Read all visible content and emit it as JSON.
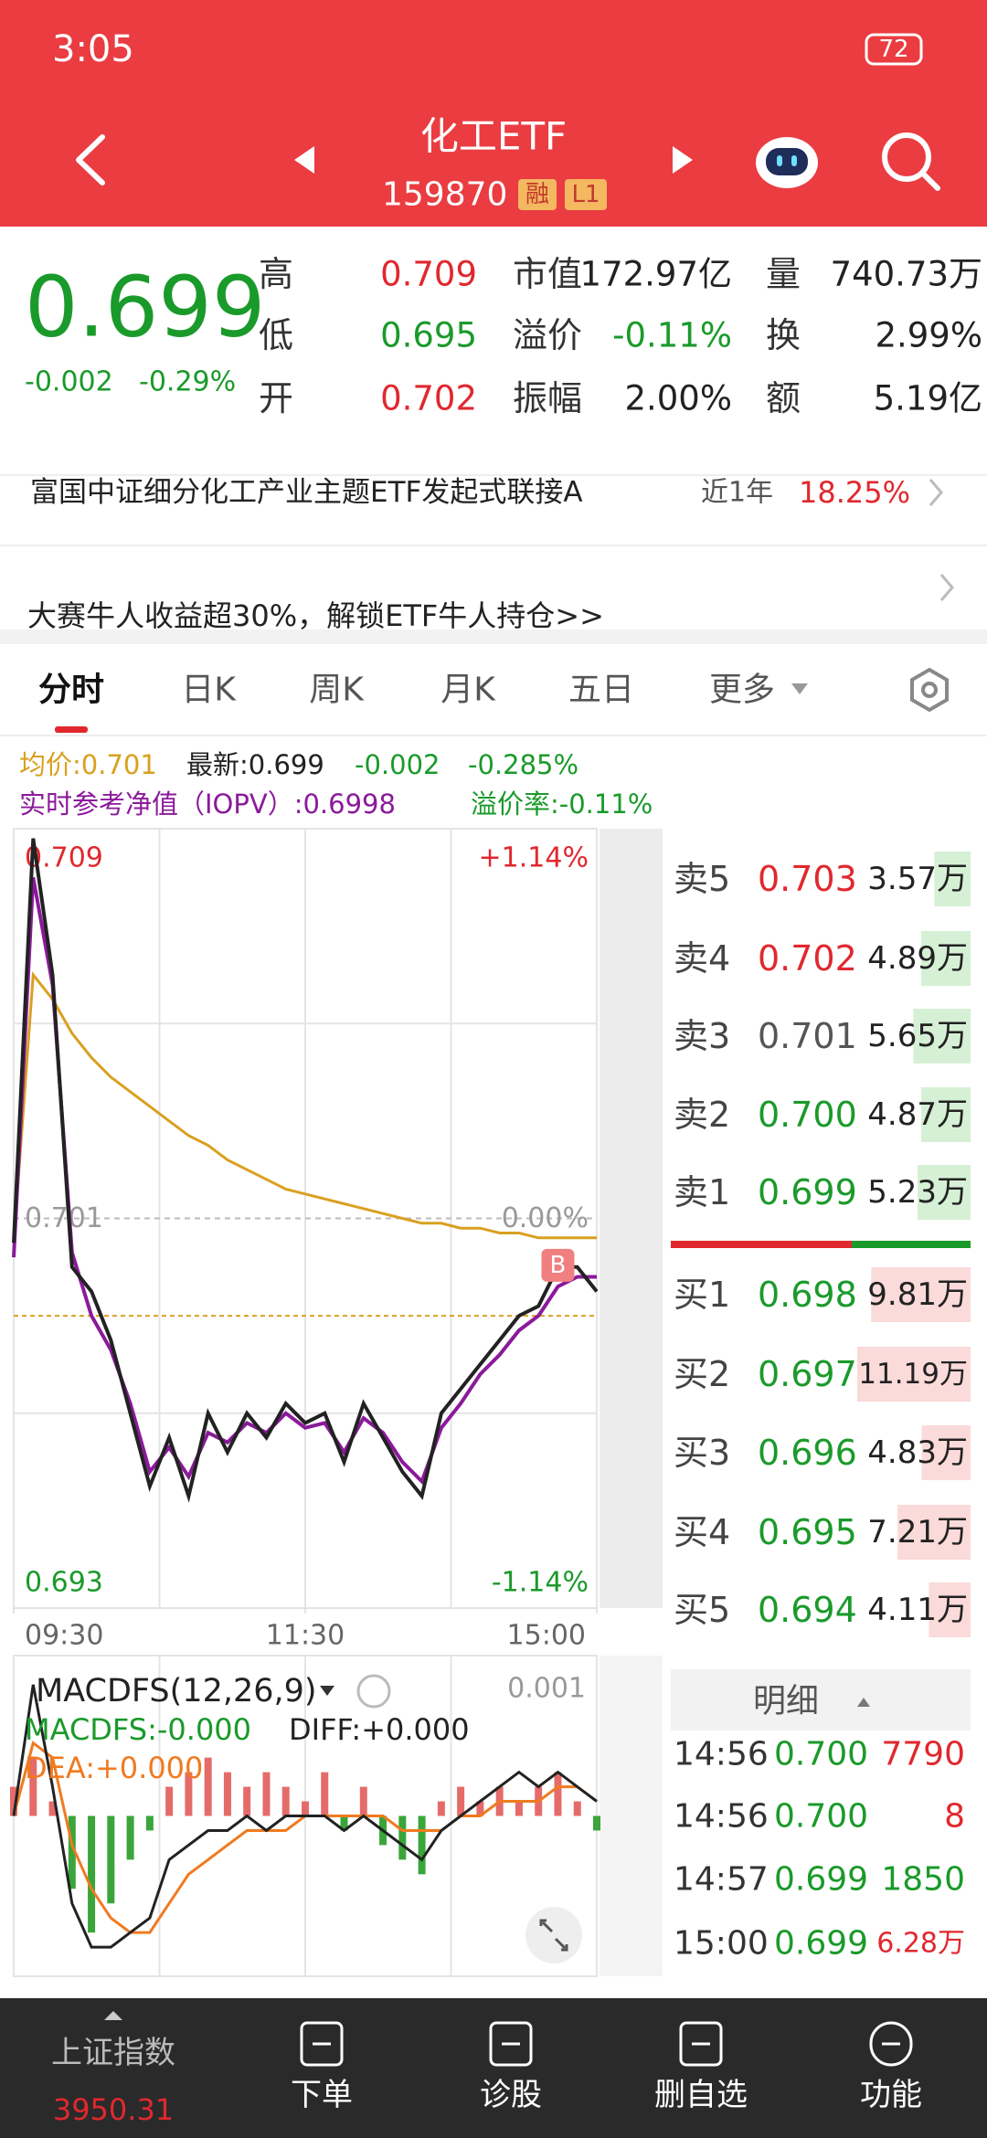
{
  "status_bar": {
    "time": "3:05",
    "battery": "72"
  },
  "header": {
    "title": "化工ETF",
    "code": "159870",
    "badges": [
      "融",
      "L1"
    ]
  },
  "quote": {
    "price": "0.699",
    "change": "-0.002",
    "change_pct": "-0.29%",
    "rows": [
      [
        {
          "label": "高",
          "value": "0.709",
          "color": "#e0282e"
        },
        {
          "label": "市值",
          "value": "172.97亿",
          "color": "#222222"
        },
        {
          "label": "量",
          "value": "740.73万",
          "color": "#222222"
        }
      ],
      [
        {
          "label": "低",
          "value": "0.695",
          "color": "#1a9a2a"
        },
        {
          "label": "溢价",
          "value": "-0.11%",
          "color": "#1a9a2a"
        },
        {
          "label": "换",
          "value": "2.99%",
          "color": "#222222"
        }
      ],
      [
        {
          "label": "开",
          "value": "0.702",
          "color": "#e0282e"
        },
        {
          "label": "振幅",
          "value": "2.00%",
          "color": "#222222"
        },
        {
          "label": "额",
          "value": "5.19亿",
          "color": "#222222"
        }
      ]
    ]
  },
  "fund": {
    "name": "富国中证细分化工产业主题ETF发起式联接A",
    "period": "近1年",
    "return": "18.25%"
  },
  "banner": "大赛牛人收益超30%，解锁ETF牛人持仓>>",
  "tabs": [
    "分时",
    "日K",
    "周K",
    "月K",
    "五日",
    "更多"
  ],
  "info": {
    "avg": "均价:0.701",
    "latest": "最新:0.699",
    "change": "-0.002",
    "change_pct": "-0.285%",
    "iopv": "实时参考净值（IOPV）:0.6998",
    "premium": "溢价率:-0.11%"
  },
  "intraday": {
    "type": "line",
    "x": [
      0,
      8,
      16,
      24,
      32,
      40,
      48,
      56,
      64,
      72,
      80,
      88,
      96,
      104,
      112,
      120,
      128,
      136,
      144,
      152,
      160,
      168,
      176,
      184,
      192,
      200,
      208,
      216,
      224,
      232,
      240
    ],
    "xlim": [
      0,
      240
    ],
    "xticks": [
      {
        "value": 0,
        "label": "09:30"
      },
      {
        "value": 120,
        "label": "11:30"
      },
      {
        "value": 240,
        "label": "15:00"
      }
    ],
    "xgrid": [
      60,
      120,
      180
    ],
    "ylim": [
      0.693,
      0.709
    ],
    "yticks": [
      0.709,
      0.701,
      0.693
    ],
    "ygrid": [
      0.705,
      0.697
    ],
    "right_labels": [
      "+1.14%",
      "0.00%",
      "-1.14%"
    ],
    "last_price_line": 0.699,
    "series": [
      {
        "color": "#222222",
        "values": [
          0.7005,
          0.7088,
          0.706,
          0.7,
          0.6995,
          0.6985,
          0.697,
          0.6955,
          0.6965,
          0.6953,
          0.697,
          0.6962,
          0.697,
          0.6965,
          0.6972,
          0.6968,
          0.697,
          0.696,
          0.6972,
          0.6965,
          0.6958,
          0.6953,
          0.697,
          0.6975,
          0.698,
          0.6985,
          0.699,
          0.6992,
          0.7,
          0.7,
          0.6995
        ]
      },
      {
        "color": "#8b1a9b",
        "values": [
          0.7002,
          0.708,
          0.7058,
          0.7003,
          0.699,
          0.6983,
          0.6972,
          0.6958,
          0.6963,
          0.6957,
          0.6966,
          0.6964,
          0.6968,
          0.6966,
          0.697,
          0.6967,
          0.6968,
          0.6962,
          0.6969,
          0.6966,
          0.696,
          0.6956,
          0.6967,
          0.6972,
          0.6978,
          0.6982,
          0.6987,
          0.699,
          0.6996,
          0.6998,
          0.6998
        ]
      },
      {
        "color": "#d9a020",
        "values": [
          0.7005,
          0.706,
          0.7055,
          0.7048,
          0.7043,
          0.7039,
          0.7036,
          0.7033,
          0.703,
          0.7027,
          0.7025,
          0.7022,
          0.702,
          0.7018,
          0.7016,
          0.7015,
          0.7014,
          0.7013,
          0.7012,
          0.7011,
          0.701,
          0.7009,
          0.7009,
          0.7008,
          0.7008,
          0.7007,
          0.7007,
          0.7006,
          0.7006,
          0.7006,
          0.7006
        ]
      }
    ],
    "marker": {
      "label": "B",
      "x": 224,
      "value": 0.7
    }
  },
  "macd": {
    "type": "bar",
    "title": "MACDFS(12,26,9)",
    "ylim": [
      -0.0011,
      0.0011
    ],
    "yticks": [
      0.001
    ],
    "labels": {
      "macd": "MACDFS:-0.000",
      "diff": "DIFF:+0.000",
      "dea": "DEA:+0.000"
    },
    "hist": [
      0.0002,
      0.0004,
      0.0001,
      -0.0005,
      -0.0008,
      -0.0006,
      -0.0003,
      -0.0001,
      0.0002,
      0.0003,
      0.0004,
      0.0003,
      0.0002,
      0.0003,
      0.0002,
      0.0001,
      0.0003,
      -0.0001,
      0.0002,
      -0.0002,
      -0.0003,
      -0.0004,
      0.0001,
      0.0002,
      0.0001,
      0.0002,
      0.0001,
      0.0002,
      0.0003,
      0.0001,
      -0.0001
    ],
    "diff": {
      "color": "#222222",
      "values": [
        0,
        0.0009,
        0.0002,
        -0.0006,
        -0.0009,
        -0.0009,
        -0.0008,
        -0.0007,
        -0.0003,
        -0.0002,
        -0.0001,
        -0.0001,
        0,
        -0.0001,
        0,
        0,
        0,
        -0.0001,
        0,
        -0.0001,
        -0.0002,
        -0.0003,
        -0.0001,
        0,
        0.0001,
        0.0002,
        0.0003,
        0.0002,
        0.0003,
        0.0002,
        0.0001
      ]
    },
    "dea": {
      "color": "#f07a20",
      "values": [
        0,
        0.0005,
        0.0004,
        -0.0002,
        -0.0005,
        -0.0007,
        -0.0008,
        -0.0008,
        -0.0006,
        -0.0004,
        -0.0003,
        -0.0002,
        -0.0001,
        -0.0001,
        -0.0001,
        0,
        0,
        0,
        0,
        0,
        -0.0001,
        -0.0001,
        -0.0001,
        0,
        0,
        0.0001,
        0.0001,
        0.0001,
        0.0002,
        0.0002,
        0.0001
      ]
    }
  },
  "order_book": {
    "sell": [
      {
        "label": "卖5",
        "price": "0.703",
        "color": "#e0282e",
        "volume": {
          "value": 3.57,
          "label": "3.57万"
        }
      },
      {
        "label": "卖4",
        "price": "0.702",
        "color": "#e0282e",
        "volume": {
          "value": 4.89,
          "label": "4.89万"
        }
      },
      {
        "label": "卖3",
        "price": "0.701",
        "color": "#555555",
        "volume": {
          "value": 5.65,
          "label": "5.65万"
        }
      },
      {
        "label": "卖2",
        "price": "0.700",
        "color": "#1a9a2a",
        "volume": {
          "value": 4.87,
          "label": "4.87万"
        }
      },
      {
        "label": "卖1",
        "price": "0.699",
        "color": "#1a9a2a",
        "volume": {
          "value": 5.23,
          "label": "5.23万"
        }
      }
    ],
    "buy": [
      {
        "label": "买1",
        "price": "0.698",
        "color": "#1a9a2a",
        "volume": {
          "value": 9.81,
          "label": "9.81万"
        }
      },
      {
        "label": "买2",
        "price": "0.697",
        "color": "#1a9a2a",
        "volume": {
          "value": 11.19,
          "label": "11.19万"
        }
      },
      {
        "label": "买3",
        "price": "0.696",
        "color": "#1a9a2a",
        "volume": {
          "value": 4.83,
          "label": "4.83万"
        }
      },
      {
        "label": "买4",
        "price": "0.695",
        "color": "#1a9a2a",
        "volume": {
          "value": 7.21,
          "label": "7.21万"
        }
      },
      {
        "label": "买5",
        "price": "0.694",
        "color": "#1a9a2a",
        "volume": {
          "value": 4.11,
          "label": "4.11万"
        }
      }
    ]
  },
  "trades": {
    "title": "明细",
    "rows": [
      {
        "time": "14:56",
        "price": "0.700",
        "volume": "7790",
        "color": "#e0282e"
      },
      {
        "time": "14:56",
        "price": "0.700",
        "volume": "8",
        "color": "#e0282e"
      },
      {
        "time": "14:57",
        "price": "0.699",
        "volume": "1850",
        "color": "#1a9a2a"
      },
      {
        "time": "15:00",
        "price": "0.699",
        "volume": "6.28万",
        "color": "#e0282e"
      }
    ]
  },
  "bottom_nav": [
    {
      "label": "上证指数",
      "value": "3950.31"
    },
    {
      "label": "下单"
    },
    {
      "label": "诊股"
    },
    {
      "label": "删自选"
    },
    {
      "label": "功能"
    }
  ]
}
